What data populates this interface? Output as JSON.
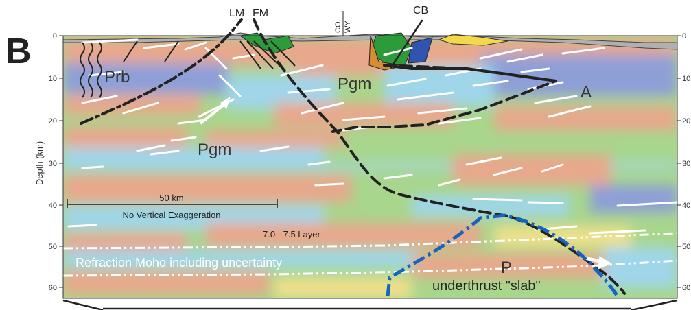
{
  "panel_letter": "B",
  "axis": {
    "ylabel": "Depth (km)",
    "ticks": [
      "0",
      "10",
      "20",
      "30",
      "40",
      "50",
      "60"
    ]
  },
  "top_labels": {
    "lm": "LM",
    "fm": "FM",
    "co": "CO",
    "wy": "WY",
    "cb": "CB"
  },
  "units": {
    "prb": "Prb",
    "pgm_upper": "Pgm",
    "pgm_lower": "Pgm",
    "a": "A",
    "p": "P"
  },
  "scale_bar": {
    "label": "50 km",
    "note": "No Vertical Exaggeration"
  },
  "annotations": {
    "layer": "7.0 - 7.5 Layer",
    "moho": "Refraction Moho including uncertainty",
    "slab": "underthrust \"slab\""
  },
  "colors": {
    "salmon": "#e8a88c",
    "green": "#a8d68c",
    "cyan": "#9fd6ea",
    "blue": "#8e9fd8",
    "yellow": "#f0e08a",
    "slab_line": "#1565c0",
    "fault": "#222222"
  }
}
